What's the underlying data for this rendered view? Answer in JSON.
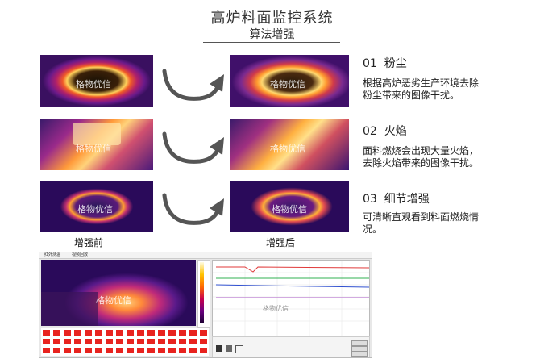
{
  "header": {
    "title": "高炉料面监控系统",
    "subtitle": "算法增强"
  },
  "watermark": "格物优信",
  "colors": {
    "accent_dark": "#2a0a5a",
    "accent_hot": "#ffb000",
    "arrow": "#555555"
  },
  "features": [
    {
      "num": "01",
      "label": "粉尘",
      "desc": "根据高炉恶劣生产环境去除粉尘带来的图像干扰。"
    },
    {
      "num": "02",
      "label": "火焰",
      "desc": "面料燃烧会出现大量火焰，去除火焰带来的图像干扰。"
    },
    {
      "num": "03",
      "label": "细节增强",
      "desc": "可清晰直观看到料面燃烧情况。"
    }
  ],
  "captions": {
    "before": "增强前",
    "after": "增强后"
  },
  "software": {
    "tabs": [
      "红外测温",
      "视频回放"
    ],
    "buttons": [
      "",
      "",
      ""
    ]
  },
  "icons": [
    "arrow-curve-icon",
    "arrow-curve-icon",
    "arrow-curve-icon"
  ]
}
